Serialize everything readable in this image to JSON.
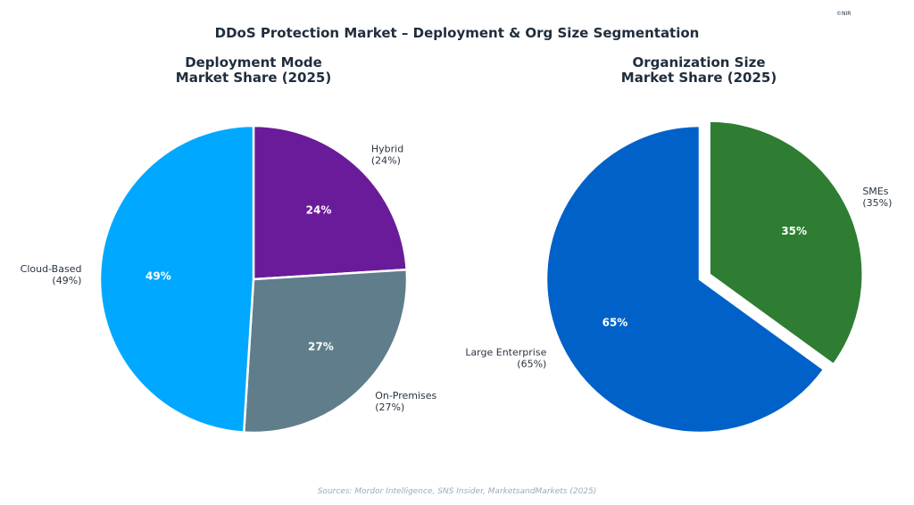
{
  "title": "DDoS Protection Market – Deployment & Org Size Segmentation",
  "watermark": "©NIR",
  "source": "Sources: Mordor Intelligence, SNS Insider, MarketsandMarkets (2025)",
  "chart_data": [
    {
      "type": "pie",
      "title_line1": "Deployment Mode",
      "title_line2": "Market Share (2025)",
      "slices": [
        {
          "label": "Hybrid",
          "value": 24,
          "color": "#6a1b9a",
          "explode": false
        },
        {
          "label": "On-Premises",
          "value": 27,
          "color": "#607d8b",
          "explode": false
        },
        {
          "label": "Cloud-Based",
          "value": 49,
          "color": "#00a8ff",
          "explode": false
        }
      ]
    },
    {
      "type": "pie",
      "title_line1": "Organization Size",
      "title_line2": "Market Share (2025)",
      "slices": [
        {
          "label": "SMEs",
          "value": 35,
          "color": "#2e7d32",
          "explode": true
        },
        {
          "label": "Large Enterprise",
          "value": 65,
          "color": "#0062c9",
          "explode": false
        }
      ]
    }
  ]
}
